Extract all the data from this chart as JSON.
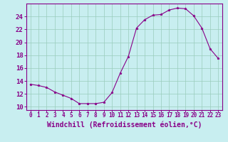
{
  "x": [
    0,
    1,
    2,
    3,
    4,
    5,
    6,
    7,
    8,
    9,
    10,
    11,
    12,
    13,
    14,
    15,
    16,
    17,
    18,
    19,
    20,
    21,
    22,
    23
  ],
  "y": [
    13.5,
    13.3,
    13.0,
    12.3,
    11.8,
    11.3,
    10.5,
    10.5,
    10.5,
    10.7,
    12.2,
    15.2,
    17.8,
    22.2,
    23.5,
    24.2,
    24.3,
    25.0,
    25.3,
    25.2,
    24.1,
    22.2,
    19.0,
    17.5
  ],
  "xlim": [
    -0.5,
    23.5
  ],
  "ylim": [
    9.5,
    26.0
  ],
  "yticks": [
    10,
    12,
    14,
    16,
    18,
    20,
    22,
    24
  ],
  "xticks": [
    0,
    1,
    2,
    3,
    4,
    5,
    6,
    7,
    8,
    9,
    10,
    11,
    12,
    13,
    14,
    15,
    16,
    17,
    18,
    19,
    20,
    21,
    22,
    23
  ],
  "xlabel": "Windchill (Refroidissement éolien,°C)",
  "line_color": "#880088",
  "marker": "*",
  "marker_size": 2.5,
  "linewidth": 0.8,
  "background_color": "#c8eef0",
  "grid_color": "#99ccbb",
  "tick_color": "#880088",
  "label_color": "#880088",
  "spine_color": "#880088",
  "xlabel_fontsize": 7,
  "ytick_fontsize": 6.5,
  "xtick_fontsize": 5.5
}
